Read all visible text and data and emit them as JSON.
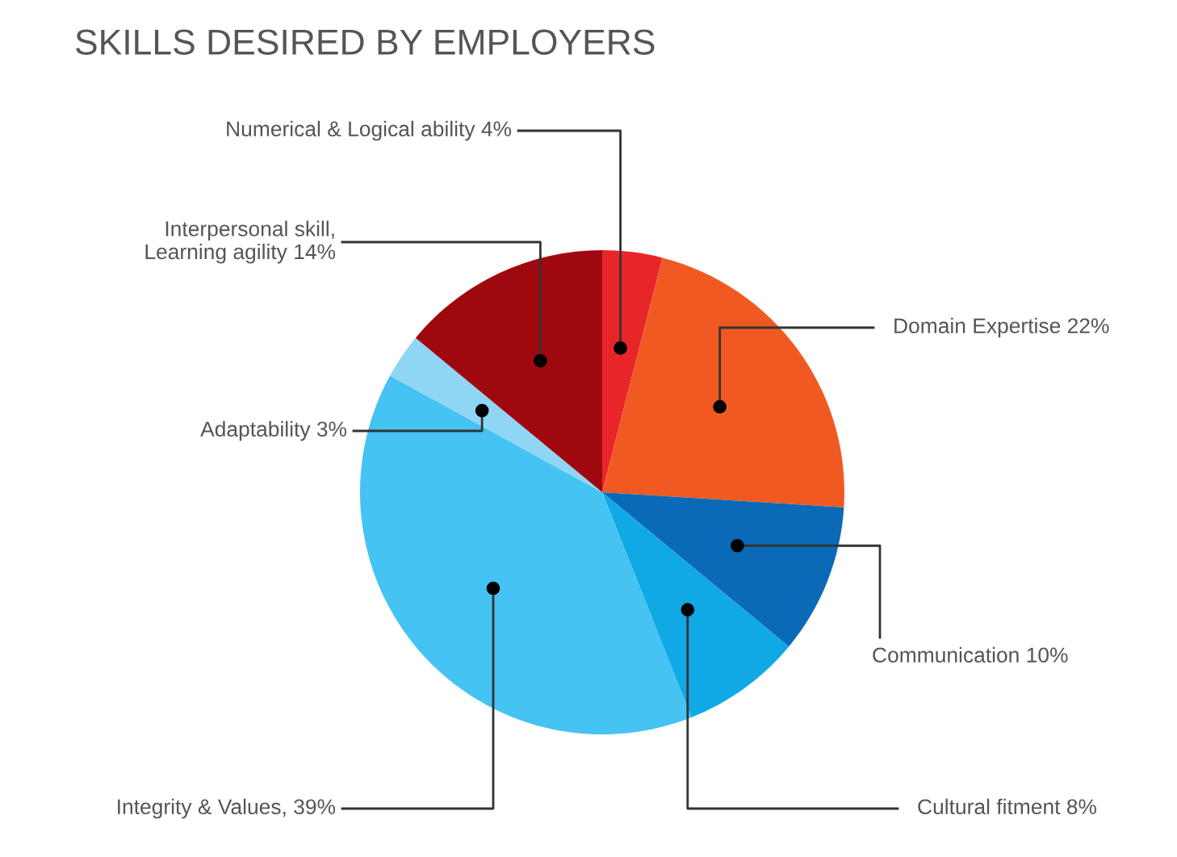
{
  "chart_data": {
    "type": "pie",
    "title": "SKILLS DESIRED BY EMPLOYERS",
    "categories": [
      "Numerical & Logical ability",
      "Domain Expertise",
      "Communication",
      "Cultural fitment",
      "Integrity & Values",
      "Adaptability",
      "Interpersonal skill,\nLearning agility"
    ],
    "values": [
      4,
      22,
      10,
      8,
      39,
      3,
      14
    ],
    "value_labels": [
      "4%",
      "22%",
      "10%",
      "8%",
      ", 39%",
      "3%",
      "14%"
    ],
    "colors": [
      "#e8262a",
      "#f05a22",
      "#0a6ab8",
      "#11a8e6",
      "#45c3f2",
      "#8fd6f5",
      "#a0080f"
    ],
    "legend": false
  }
}
